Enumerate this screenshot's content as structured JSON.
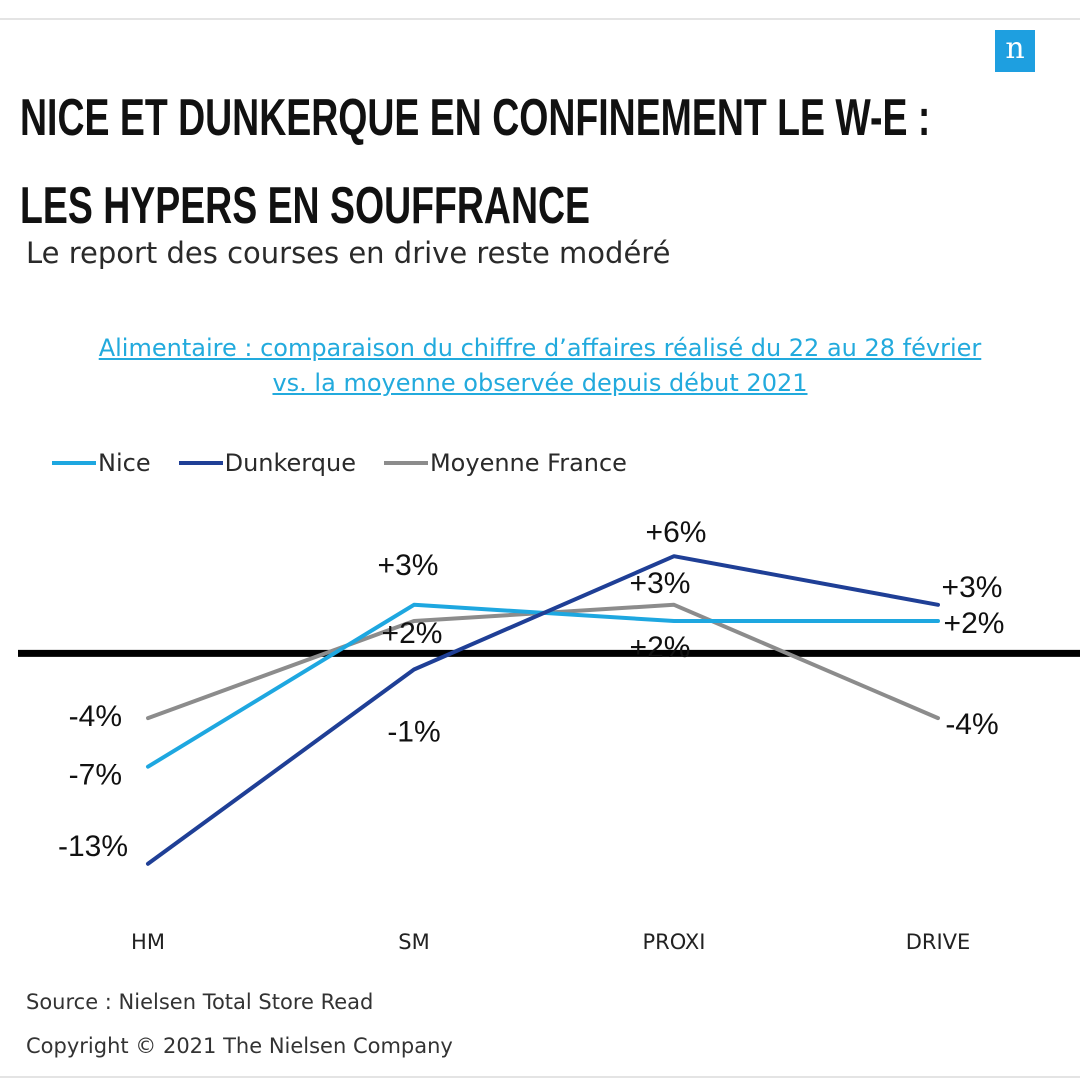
{
  "header": {
    "title_line1": "NICE ET DUNKERQUE EN CONFINEMENT LE W-E :",
    "title_line2": "LES HYPERS EN SOUFFRANCE",
    "subtitle": "Le report des courses en drive reste modéré",
    "logo_letter": "n"
  },
  "chart_heading": {
    "line1": "Alimentaire : comparaison du chiffre d’affaires réalisé du 22 au 28 février",
    "line2": "vs. la moyenne observée depuis début 2021"
  },
  "chart_data": {
    "type": "line",
    "categories": [
      "HM",
      "SM",
      "PROXI",
      "DRIVE"
    ],
    "series": [
      {
        "name": "Nice",
        "color": "#1ea7e0",
        "values": [
          -7,
          3,
          2,
          2
        ],
        "labels": [
          "-7%",
          "+3%",
          "+2%",
          "+2%"
        ]
      },
      {
        "name": "Dunkerque",
        "color": "#1f3f96",
        "values": [
          -13,
          -1,
          6,
          3
        ],
        "labels": [
          "-13%",
          "-1%",
          "+6%",
          "+3%"
        ]
      },
      {
        "name": "Moyenne France",
        "color": "#8c8c8c",
        "values": [
          -4,
          2,
          3,
          -4
        ],
        "labels": [
          "-4%",
          "+2%",
          "+3%",
          "-4%"
        ]
      }
    ],
    "ylim": [
      -14,
      7
    ],
    "zero_line": true,
    "grid": false,
    "legend_position": "top-left",
    "xlabel": "",
    "ylabel": ""
  },
  "footer": {
    "source": "Source : Nielsen Total Store Read",
    "copyright": "Copyright © 2021 The Nielsen Company"
  },
  "colors": {
    "accent": "#1e9fe0",
    "link": "#22aadd",
    "axis": "#000000"
  }
}
